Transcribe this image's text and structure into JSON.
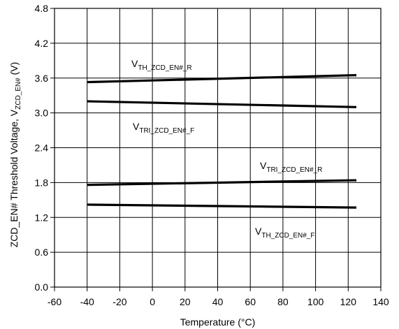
{
  "chart_data": {
    "type": "line",
    "title": "",
    "xlabel": "Temperature (°C)",
    "ylabel": "ZCD_EN# Threshold Voltage, V",
    "ylabel_sub": "ZCD_EN#",
    "ylabel_unit": " (V)",
    "xlim": [
      -60,
      140
    ],
    "ylim": [
      0,
      4.8
    ],
    "x_ticks": [
      "-60",
      "-40",
      "-20",
      "0",
      "20",
      "40",
      "60",
      "80",
      "100",
      "120",
      "140"
    ],
    "y_ticks": [
      "0.0",
      "0.6",
      "1.2",
      "1.8",
      "2.4",
      "3.0",
      "3.6",
      "4.2",
      "4.8"
    ],
    "grid": true,
    "series": [
      {
        "name_main": "V",
        "name_sub": "TH_ZCD_EN#_R",
        "x": [
          -40,
          125
        ],
        "values": [
          3.53,
          3.65
        ]
      },
      {
        "name_main": "V",
        "name_sub": "TRI_ZCD_EN#_F",
        "x": [
          -40,
          125
        ],
        "values": [
          3.2,
          3.1
        ]
      },
      {
        "name_main": "V",
        "name_sub": "TRI_ZCD_EN#_R",
        "x": [
          -40,
          125
        ],
        "values": [
          1.76,
          1.84
        ]
      },
      {
        "name_main": "V",
        "name_sub": "TH_ZCD_EN#_F",
        "x": [
          -40,
          125
        ],
        "values": [
          1.42,
          1.37
        ]
      }
    ]
  }
}
